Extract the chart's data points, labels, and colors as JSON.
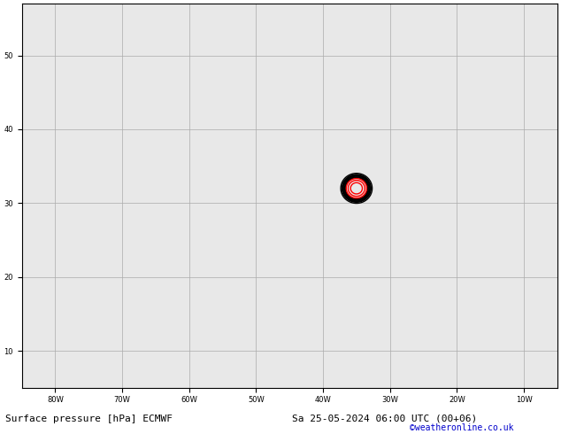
{
  "title_left": "Surface pressure [hPa] ECMWF",
  "title_right": "Sa 25-05-2024 06:00 UTC (00+06)",
  "credit": "©weatheronline.co.uk",
  "background_color": "#e8e8e8",
  "land_color": "#c8e6b0",
  "grid_color": "#aaaaaa",
  "figsize": [
    6.34,
    4.9
  ],
  "dpi": 100,
  "lon_min": -85,
  "lon_max": -5,
  "lat_min": 5,
  "lat_max": 57,
  "xticks": [
    -80,
    -70,
    -60,
    -50,
    -40,
    -30,
    -20,
    -10
  ],
  "yticks": [
    10,
    20,
    30,
    40,
    50
  ],
  "xlabel_labels": [
    "80W",
    "70W",
    "60W",
    "50W",
    "40W",
    "30W",
    "20W",
    "10W"
  ],
  "ylabel_labels": [
    "10",
    "20",
    "30",
    "40",
    "50"
  ],
  "title_fontsize": 8,
  "credit_fontsize": 7,
  "credit_color": "#0000cc",
  "label_fontsize": 7
}
